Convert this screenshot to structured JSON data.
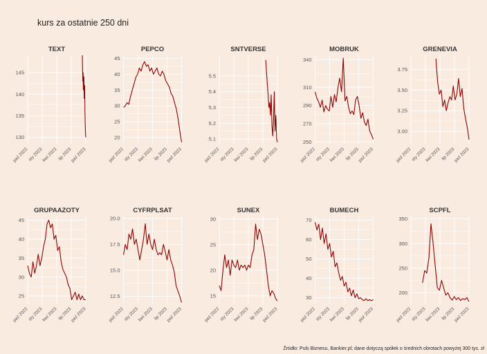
{
  "title": "kurs za ostatnie 250 dni",
  "source": "Źródło: Puls Biznesu, Bankier.pl; dane dotyczą spółek o średnich obrotach powyżej 300 tys. zł",
  "colors": {
    "background": "#faebe0",
    "line": "#8b0000",
    "grid": "#ffffff"
  },
  "chart_data": [
    {
      "type": "line",
      "name": "TEXT",
      "ylim": [
        128.5,
        149
      ],
      "yticks": [
        130,
        135,
        140,
        145
      ],
      "xticks": [
        "paź 2022",
        "sty 2023",
        "kwi 2023",
        "lip 2023",
        "paź 2023"
      ],
      "x_start": 0.94,
      "y": [
        149,
        146,
        143,
        145,
        141,
        143,
        144,
        139,
        140,
        142,
        136,
        133,
        131,
        130
      ]
    },
    {
      "type": "line",
      "name": "PEPCO",
      "ylim": [
        18,
        46
      ],
      "yticks": [
        20,
        25,
        30,
        35,
        40,
        45
      ],
      "xticks": [
        "paź 2022",
        "sty 2023",
        "kwi 2023",
        "lip 2023",
        "paź 2023"
      ],
      "x_start": 0,
      "y": [
        29.5,
        30,
        31,
        30.5,
        33,
        35,
        37,
        39,
        40,
        42,
        41,
        43,
        44,
        42.5,
        43,
        41,
        42,
        40,
        41,
        42,
        40,
        39.5,
        41,
        40,
        38,
        37,
        36,
        34,
        33,
        31,
        29,
        26,
        22,
        18.5
      ]
    },
    {
      "type": "line",
      "name": "SNTVERSE",
      "ylim": [
        5.07,
        5.63
      ],
      "yticks": [
        5.1,
        5.2,
        5.3,
        5.4,
        5.5
      ],
      "xticks": [
        "paź 2022",
        "sty 2023",
        "kwi 2023",
        "lip 2023",
        "paź 2023"
      ],
      "x_start": 0.8,
      "y": [
        5.6,
        5.52,
        5.45,
        5.38,
        5.3,
        5.33,
        5.25,
        5.38,
        5.18,
        5.12,
        5.22,
        5.4,
        5.15,
        5.25,
        5.1,
        5.08
      ]
    },
    {
      "type": "line",
      "name": "MOBRUK",
      "ylim": [
        248,
        345
      ],
      "yticks": [
        250,
        270,
        290,
        310,
        340
      ],
      "xticks": [
        "paź 2022",
        "sty 2023",
        "kwi 2023",
        "lip 2023",
        "paź 2023"
      ],
      "x_start": 0,
      "y": [
        305,
        298,
        294,
        288,
        296,
        283,
        290,
        286,
        284,
        300,
        288,
        302,
        294,
        310,
        320,
        305,
        342,
        295,
        300,
        288,
        281,
        284,
        280,
        296,
        300,
        290,
        276,
        282,
        272,
        268,
        275,
        262,
        258,
        253
      ]
    },
    {
      "type": "line",
      "name": "GRENEVIA",
      "ylim": [
        2.85,
        3.92
      ],
      "yticks": [
        3.0,
        3.25,
        3.5,
        3.75
      ],
      "xticks": [
        "paź 2022",
        "sty 2023",
        "kwi 2023",
        "lip 2023",
        "paź 2023"
      ],
      "x_start": 0.43,
      "y": [
        3.88,
        3.6,
        3.45,
        3.5,
        3.3,
        3.38,
        3.25,
        3.35,
        3.42,
        3.38,
        3.55,
        3.38,
        3.45,
        3.64,
        3.42,
        3.52,
        3.28,
        3.15,
        3.05,
        2.9
      ]
    },
    {
      "type": "line",
      "name": "GRUPAAZOTY",
      "ylim": [
        23,
        46
      ],
      "yticks": [
        25,
        30,
        35,
        40,
        45
      ],
      "xticks": [
        "paź 2022",
        "sty 2023",
        "kwi 2023",
        "lip 2023",
        "paź 2023"
      ],
      "x_start": 0,
      "y": [
        33,
        31,
        30,
        34,
        31,
        33,
        36,
        33,
        35,
        38,
        40,
        44,
        45,
        43,
        44,
        40,
        41,
        37,
        38,
        34,
        32,
        31,
        30,
        28,
        27,
        24,
        25,
        26,
        24,
        25.5,
        24,
        25,
        24,
        24
      ]
    },
    {
      "type": "line",
      "name": "CYFRPLSAT",
      "ylim": [
        11.8,
        20.2
      ],
      "yticks": [
        12.5,
        15.0,
        17.5,
        20.0
      ],
      "xticks": [
        "paź 2022",
        "sty 2023",
        "kwi 2023",
        "lip 2023",
        "paź 2023"
      ],
      "x_start": 0,
      "y": [
        16.5,
        17.5,
        17,
        18.5,
        18,
        19,
        17.5,
        18,
        17,
        16,
        17,
        18,
        19.5,
        17.5,
        18.5,
        17.5,
        17,
        18,
        17,
        16.5,
        16.7,
        16.5,
        17.5,
        16.8,
        16,
        17,
        16,
        15.5,
        14.8,
        13.5,
        13,
        12.5,
        11.9
      ]
    },
    {
      "type": "line",
      "name": "SUNEX",
      "ylim": [
        13.5,
        30.5
      ],
      "yticks": [
        15,
        20,
        25,
        30
      ],
      "xticks": [
        "paź 2022",
        "sty 2023",
        "kwi 2023",
        "lip 2023",
        "paź 2023"
      ],
      "x_start": 0,
      "y": [
        17,
        16,
        20,
        23,
        20.5,
        22,
        19,
        22,
        21,
        20.5,
        22,
        20,
        21,
        20.5,
        21,
        20,
        21,
        20.5,
        23,
        24,
        29,
        26,
        28,
        27,
        25,
        23,
        20,
        17,
        15,
        16,
        15.5,
        14.5,
        14
      ]
    },
    {
      "type": "line",
      "name": "BUMECH",
      "ylim": [
        27,
        72
      ],
      "yticks": [
        30,
        40,
        50,
        60,
        70
      ],
      "xticks": [
        "paź 2022",
        "sty 2023",
        "kwi 2023",
        "lip 2023",
        "paź 2023"
      ],
      "x_start": 0,
      "y": [
        69,
        65,
        68,
        60,
        66,
        58,
        63,
        55,
        58,
        51,
        54,
        46,
        48,
        43,
        39,
        41,
        36,
        38,
        33,
        35,
        31,
        34,
        30,
        32,
        29.5,
        30,
        29,
        28.5,
        29.5,
        28.5,
        29,
        28.5,
        29
      ]
    },
    {
      "type": "line",
      "name": "SCPFL",
      "ylim": [
        178,
        355
      ],
      "yticks": [
        200,
        250,
        300,
        350
      ],
      "xticks": [
        "paź 2022",
        "sty 2023",
        "kwi 2023",
        "lip 2023",
        "paź 2023"
      ],
      "x_start": 0.2,
      "y": [
        220,
        245,
        240,
        270,
        340,
        300,
        255,
        210,
        205,
        225,
        210,
        195,
        200,
        190,
        185,
        192,
        186,
        190,
        184,
        188,
        186,
        190,
        182
      ]
    }
  ]
}
